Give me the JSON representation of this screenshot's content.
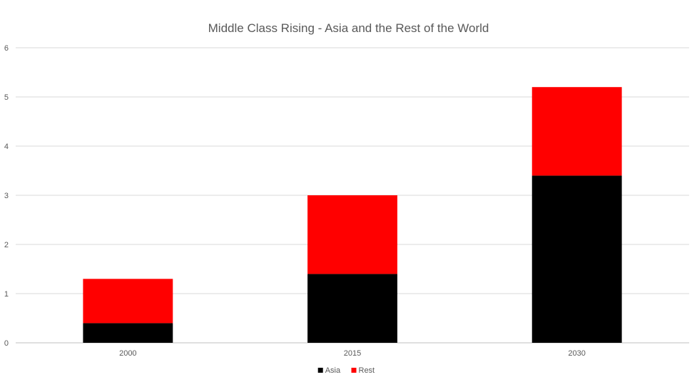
{
  "chart_data": {
    "type": "bar",
    "stacked": true,
    "title": "Middle Class Rising - Asia and the Rest of the World",
    "xlabel": "",
    "ylabel": "",
    "categories": [
      "2000",
      "2015",
      "2030"
    ],
    "series": [
      {
        "name": "Asia",
        "values": [
          0.4,
          1.4,
          3.4
        ],
        "color": "#000000"
      },
      {
        "name": "Rest",
        "values": [
          0.9,
          1.6,
          1.8
        ],
        "color": "#ff0000"
      }
    ],
    "ylim": [
      0,
      6
    ],
    "yticks": [
      "0",
      "1",
      "2",
      "3",
      "4",
      "5",
      "6"
    ],
    "grid": true,
    "legend": "bottom"
  }
}
